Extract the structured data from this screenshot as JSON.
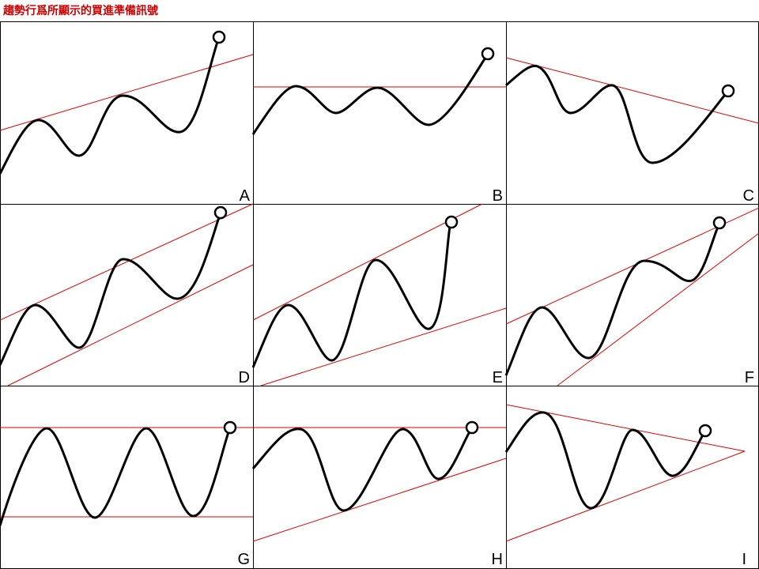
{
  "header": {
    "title": "趨勢行爲所顯示的買進準備訊號"
  },
  "panels": [
    {
      "label": "A"
    },
    {
      "label": "B"
    },
    {
      "label": "C"
    },
    {
      "label": "D"
    },
    {
      "label": "E"
    },
    {
      "label": "F"
    },
    {
      "label": "G"
    },
    {
      "label": "H"
    },
    {
      "label": "I"
    }
  ]
}
